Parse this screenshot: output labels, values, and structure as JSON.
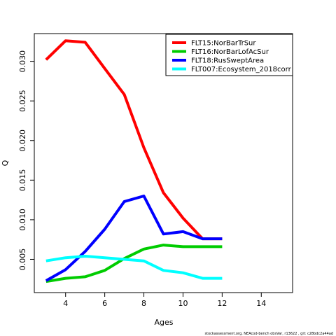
{
  "chart_data": {
    "type": "line",
    "xlabel": "Ages",
    "ylabel": "Q",
    "xlim": [
      2.4,
      15.6
    ],
    "ylim": [
      0.0008,
      0.0335
    ],
    "xticks": [
      4,
      6,
      8,
      10,
      12,
      14
    ],
    "yticks": [
      0.005,
      0.01,
      0.015,
      0.02,
      0.025,
      0.03
    ],
    "ytick_labels": [
      "0.005",
      "0.010",
      "0.015",
      "0.020",
      "0.025",
      "0.030"
    ],
    "grid": false,
    "legend_position": "top-right",
    "series": [
      {
        "name": "FLT15:NorBarTrSur",
        "color": "#ff0000",
        "x": [
          3,
          4,
          5,
          6,
          7,
          8,
          9,
          10,
          11,
          12
        ],
        "y": [
          0.0302,
          0.0326,
          0.0324,
          0.0291,
          0.0258,
          0.0191,
          0.0134,
          0.0102,
          0.0076,
          0.0076
        ]
      },
      {
        "name": "FLT16:NorBarLofAcSur",
        "color": "#00cc00",
        "x": [
          3,
          4,
          5,
          6,
          7,
          8,
          9,
          10,
          11,
          12
        ],
        "y": [
          0.0022,
          0.0026,
          0.0028,
          0.0036,
          0.0051,
          0.0063,
          0.0068,
          0.0066,
          0.0066,
          0.0066
        ]
      },
      {
        "name": "FLT18:RusSweptArea",
        "color": "#0000ff",
        "x": [
          3,
          4,
          5,
          6,
          7,
          8,
          9,
          10,
          11,
          12
        ],
        "y": [
          0.0023,
          0.0037,
          0.006,
          0.0088,
          0.0123,
          0.013,
          0.0082,
          0.0085,
          0.0076,
          0.0076
        ]
      },
      {
        "name": "FLT007:Ecosystem_2018corr",
        "color": "#00ffff",
        "x": [
          3,
          4,
          5,
          6,
          7,
          8,
          9,
          10,
          11,
          12
        ],
        "y": [
          0.0048,
          0.0052,
          0.0054,
          0.0052,
          0.005,
          0.0048,
          0.0036,
          0.0033,
          0.0026,
          0.0026
        ]
      }
    ]
  },
  "footer": {
    "text": "stockassessment.org,  NEAcod-bench  obsVar,  r13622 ,  git:  c28bdc2a44ad"
  }
}
